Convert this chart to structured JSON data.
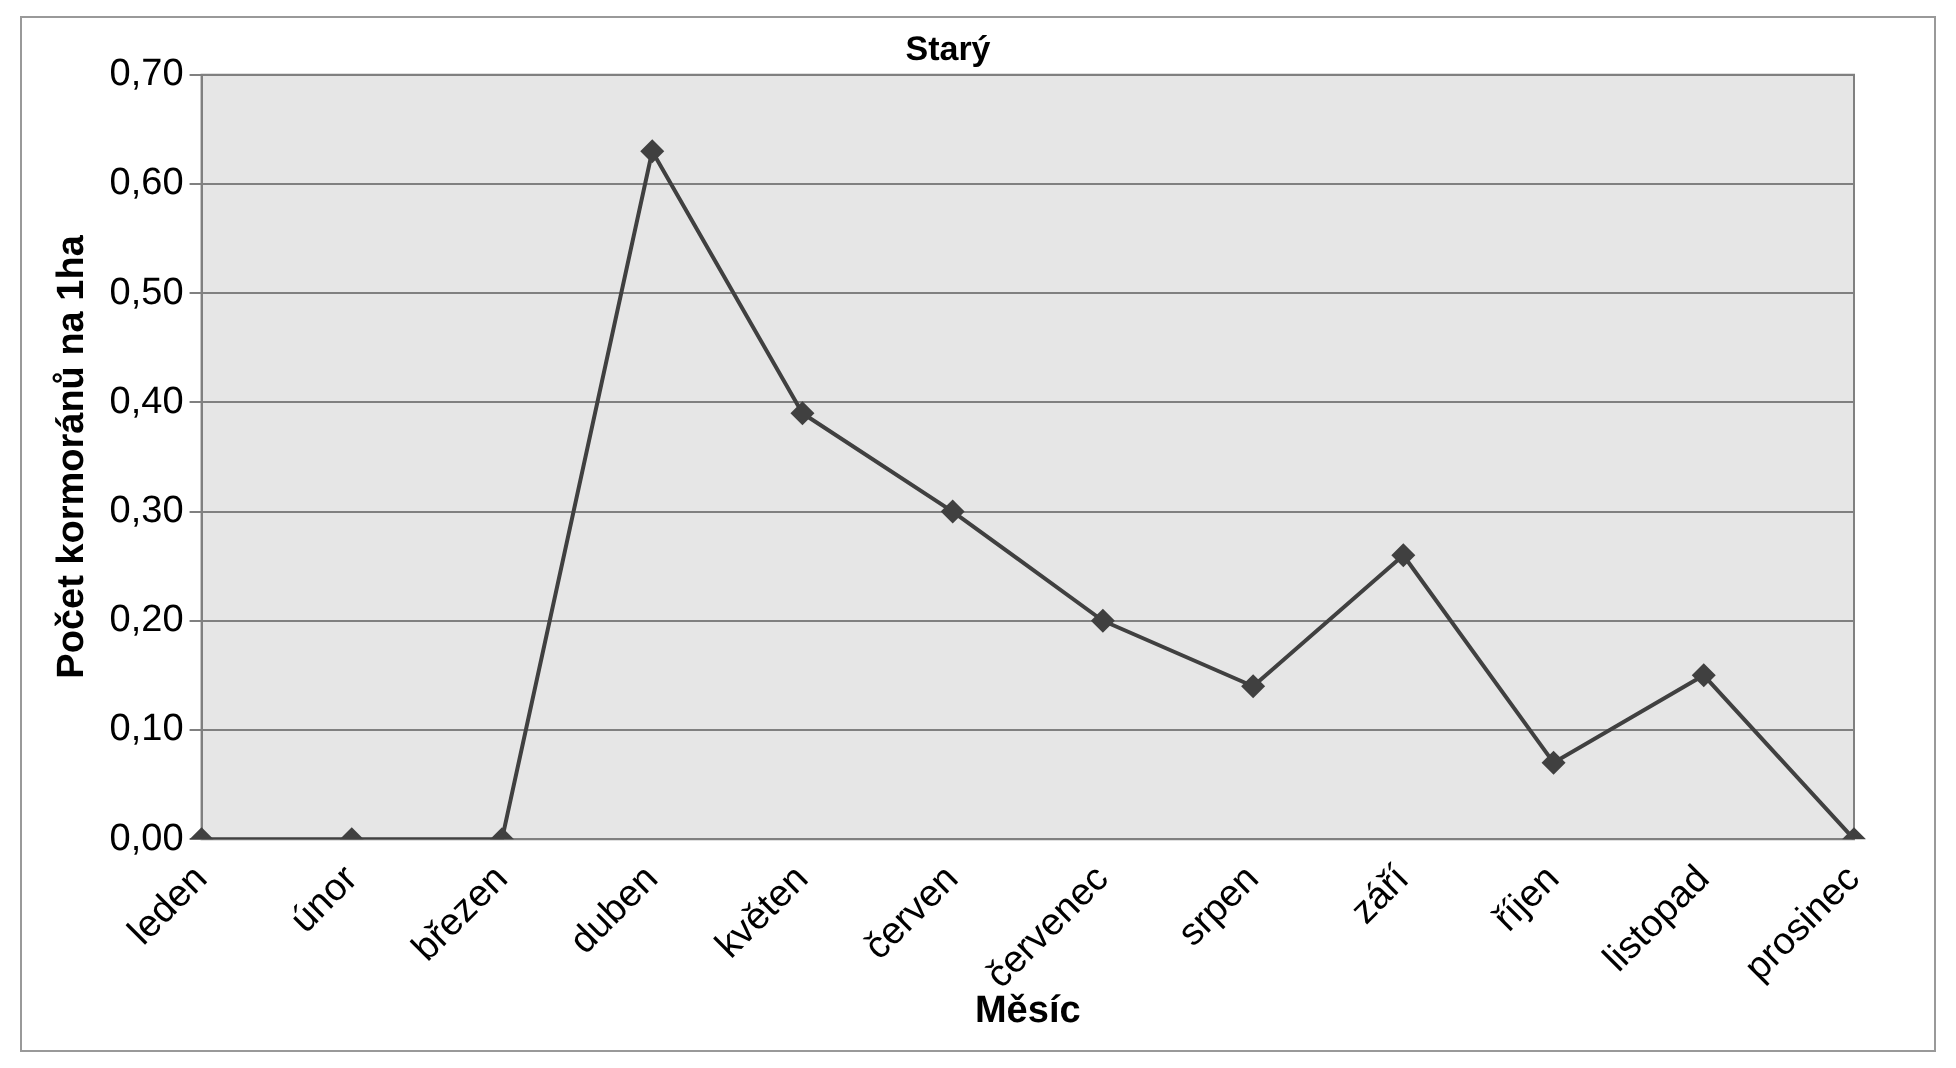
{
  "chart_data": {
    "type": "line",
    "title": "Starý",
    "xlabel": "Měsíc",
    "ylabel": "Počet kormoránů na 1ha",
    "categories": [
      "leden",
      "únor",
      "březen",
      "duben",
      "květen",
      "červen",
      "červenec",
      "srpen",
      "září",
      "říjen",
      "listopad",
      "prosinec"
    ],
    "series": [
      {
        "color": "#404040",
        "values": [
          0,
          0,
          0,
          0.63,
          0.39,
          0.3,
          0.2,
          0.14,
          0.26,
          0.07,
          0.15,
          0
        ]
      }
    ],
    "ylim": [
      0,
      0.7
    ],
    "yticks": [
      {
        "value": 0,
        "label": "0,00"
      },
      {
        "value": 0.1,
        "label": "0,10"
      },
      {
        "value": 0.2,
        "label": "0,20"
      },
      {
        "value": 0.3,
        "label": "0,30"
      },
      {
        "value": 0.4,
        "label": "0,40"
      },
      {
        "value": 0.5,
        "label": "0,50"
      },
      {
        "value": 0.6,
        "label": "0,60"
      },
      {
        "value": 0.7,
        "label": "0,70"
      }
    ],
    "grid": "y",
    "legend": false,
    "marker": "diamond",
    "line_style": "solid"
  }
}
